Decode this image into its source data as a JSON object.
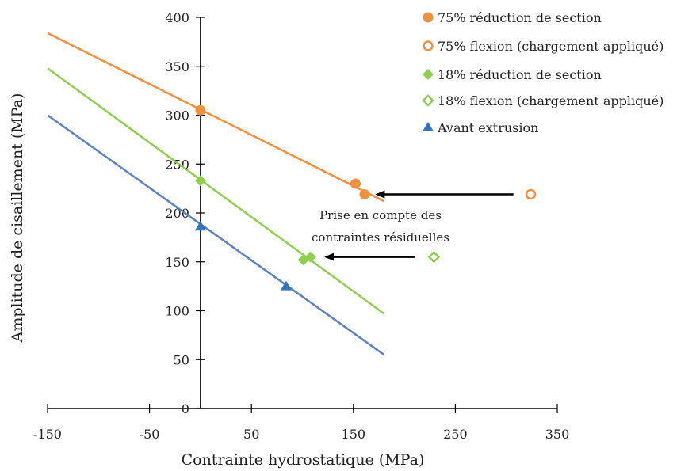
{
  "chart_data": {
    "type": "scatter",
    "title": "",
    "xlabel": "Contrainte hydrostatique (MPa)",
    "ylabel": "Amplitude de cisaillement (MPa)",
    "xlim": [
      -150,
      350
    ],
    "ylim": [
      0,
      400
    ],
    "x_ticks": [
      -150,
      -50,
      50,
      150,
      250,
      350
    ],
    "y_ticks": [
      0,
      50,
      100,
      150,
      200,
      250,
      300,
      350,
      400
    ],
    "grid": false,
    "legend_position": "top-right",
    "series": [
      {
        "name": "75% réduction de section",
        "marker": "circle",
        "filled": true,
        "color": "#f0913f",
        "points": [
          {
            "x": 0,
            "y": 305
          },
          {
            "x": 152,
            "y": 230
          },
          {
            "x": 161,
            "y": 219
          }
        ]
      },
      {
        "name": "75% flexion (chargement appliqué)",
        "marker": "circle",
        "filled": false,
        "color": "#f0913f",
        "points": [
          {
            "x": 324,
            "y": 219
          }
        ]
      },
      {
        "name": "18% réduction de section",
        "marker": "diamond",
        "filled": true,
        "color": "#8ed04d",
        "points": [
          {
            "x": 0,
            "y": 233
          },
          {
            "x": 101,
            "y": 152
          },
          {
            "x": 108,
            "y": 155
          }
        ]
      },
      {
        "name": "18% flexion (chargement appliqué)",
        "marker": "diamond",
        "filled": false,
        "color": "#8ed04d",
        "points": [
          {
            "x": 229,
            "y": 155
          }
        ]
      },
      {
        "name": "Avant extrusion",
        "marker": "triangle",
        "filled": true,
        "color": "#2f74bd",
        "points": [
          {
            "x": 0,
            "y": 186
          },
          {
            "x": 84,
            "y": 125
          }
        ]
      }
    ],
    "fit_lines": [
      {
        "color": "#f0913f",
        "x": [
          -150,
          180
        ],
        "y": [
          384,
          212
        ]
      },
      {
        "color": "#8ed04d",
        "x": [
          -150,
          180
        ],
        "y": [
          348,
          97
        ]
      },
      {
        "color": "#5b82c2",
        "x": [
          -150,
          180
        ],
        "y": [
          300,
          55
        ]
      }
    ],
    "annotations": [
      {
        "text_lines": [
          "Prise en compte des",
          "contraintes résiduelles"
        ]
      }
    ],
    "arrows": [
      {
        "from": {
          "x": 307,
          "y": 219
        },
        "to": {
          "x": 173,
          "y": 219
        }
      },
      {
        "from": {
          "x": 210,
          "y": 155
        },
        "to": {
          "x": 123,
          "y": 155
        }
      }
    ]
  }
}
